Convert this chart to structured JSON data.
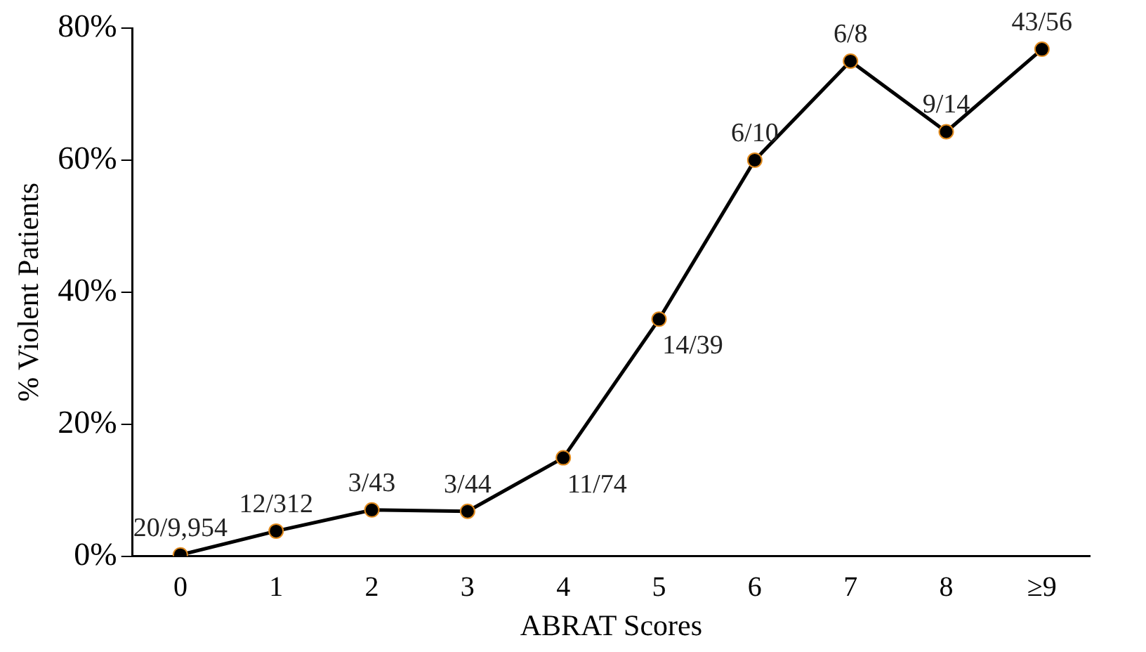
{
  "chart_data": {
    "type": "line",
    "xlabel": "ABRAT Scores",
    "ylabel": "% Violent Patients",
    "categories": [
      "0",
      "1",
      "2",
      "3",
      "4",
      "5",
      "6",
      "7",
      "8",
      "≥9"
    ],
    "series": [
      {
        "color": "#000000",
        "values": [
          0.2,
          3.8,
          7.0,
          6.8,
          14.9,
          35.9,
          60,
          75,
          64.3,
          76.8
        ]
      }
    ],
    "annotations": [
      {
        "text": "20/9,954",
        "x": "0",
        "y": 0.2
      },
      {
        "text": "12/312",
        "x": "1",
        "y": 3.8
      },
      {
        "text": "3/43",
        "x": "2",
        "y": 7.0
      },
      {
        "text": "3/44",
        "x": "3",
        "y": 6.8
      },
      {
        "text": "11/74",
        "x": "4",
        "y": 14.9
      },
      {
        "text": "14/39",
        "x": "5",
        "y": 35.9
      },
      {
        "text": "6/10",
        "x": "6",
        "y": 60
      },
      {
        "text": "6/8",
        "x": "7",
        "y": 75
      },
      {
        "text": "9/14",
        "x": "8",
        "y": 64.3
      },
      {
        "text": "43/56",
        "x": "≥9",
        "y": 76.8
      }
    ],
    "ylim": [
      0,
      80
    ],
    "yticks": [
      {
        "value": 0,
        "label": "0%"
      },
      {
        "value": 20,
        "label": "20%"
      },
      {
        "value": 40,
        "label": "40%"
      },
      {
        "value": 60,
        "label": "60%"
      },
      {
        "value": 80,
        "label": "80%"
      }
    ],
    "grid": false,
    "legend": false,
    "marker": "circle",
    "line_style": "solid"
  }
}
